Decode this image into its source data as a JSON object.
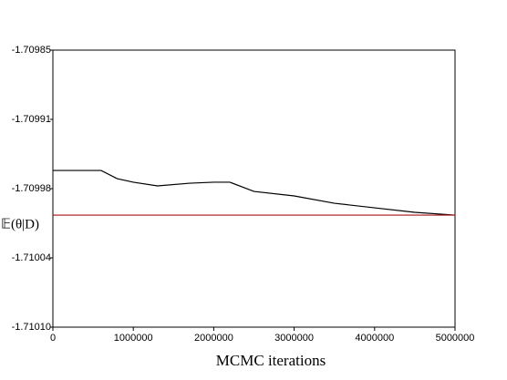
{
  "chart_data": {
    "type": "line",
    "x_label": "MCMC iterations",
    "y_label": "𝔼(θ|D)",
    "xlim": [
      0,
      5000000
    ],
    "xticks": [
      0,
      1000000,
      2000000,
      3000000,
      4000000,
      5000000
    ],
    "ylim": [
      -1.7101,
      -1.70985
    ],
    "yticks": [
      {
        "value": -1.7101,
        "label": "-1.71010"
      },
      {
        "value": -1.7100375,
        "label": "-1.71004"
      },
      {
        "value": -1.709975,
        "label": "-1.70998"
      },
      {
        "value": -1.7099125,
        "label": "-1.70991"
      },
      {
        "value": -1.70985,
        "label": "-1.70985"
      }
    ],
    "series": [
      {
        "color": "#000000",
        "x": [
          0,
          600000,
          800000,
          1000000,
          1300000,
          1700000,
          2000000,
          2200000,
          2500000,
          3000000,
          3500000,
          4000000,
          4500000,
          5000000
        ],
        "values": [
          -1.7099586,
          -1.7099586,
          -1.709966,
          -1.7099692,
          -1.7099725,
          -1.7099701,
          -1.7099692,
          -1.7099692,
          -1.7099775,
          -1.7099816,
          -1.7099882,
          -1.7099923,
          -1.7099964,
          -1.7099989
        ]
      },
      {
        "color": "#aa1111",
        "x": [
          0,
          5000000
        ],
        "values": [
          -1.7099989,
          -1.7099989
        ]
      }
    ]
  }
}
